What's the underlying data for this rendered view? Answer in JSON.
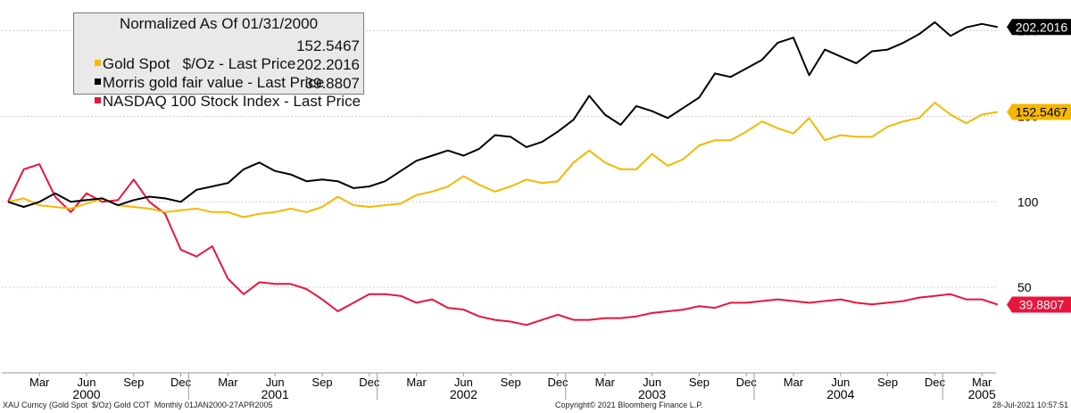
{
  "chart_data": {
    "type": "line",
    "title": "Normalized As Of 01/31/2000",
    "y_ticks": [
      {
        "value": 50,
        "label": "50"
      },
      {
        "value": 100,
        "label": "100"
      },
      {
        "value": 150,
        "label": "150"
      },
      {
        "value": 200,
        "label": "200"
      }
    ],
    "ylim": [
      0,
      218
    ],
    "x_start": "Jan 2000",
    "x_end": "Apr 2005",
    "month_ticks": [
      {
        "i": 2,
        "label": "Mar"
      },
      {
        "i": 5,
        "label": "Jun"
      },
      {
        "i": 8,
        "label": "Sep"
      },
      {
        "i": 11,
        "label": "Dec"
      },
      {
        "i": 14,
        "label": "Mar"
      },
      {
        "i": 17,
        "label": "Jun"
      },
      {
        "i": 20,
        "label": "Sep"
      },
      {
        "i": 23,
        "label": "Dec"
      },
      {
        "i": 26,
        "label": "Mar"
      },
      {
        "i": 29,
        "label": "Jun"
      },
      {
        "i": 32,
        "label": "Sep"
      },
      {
        "i": 35,
        "label": "Dec"
      },
      {
        "i": 38,
        "label": "Mar"
      },
      {
        "i": 41,
        "label": "Jun"
      },
      {
        "i": 44,
        "label": "Sep"
      },
      {
        "i": 47,
        "label": "Dec"
      },
      {
        "i": 50,
        "label": "Mar"
      },
      {
        "i": 53,
        "label": "Jun"
      },
      {
        "i": 56,
        "label": "Sep"
      },
      {
        "i": 59,
        "label": "Dec"
      },
      {
        "i": 62,
        "label": "Mar"
      }
    ],
    "year_labels": [
      {
        "i": 5,
        "label": "2000"
      },
      {
        "i": 17,
        "label": "2001"
      },
      {
        "i": 29,
        "label": "2002"
      },
      {
        "i": 41,
        "label": "2003"
      },
      {
        "i": 53,
        "label": "2004"
      },
      {
        "i": 62,
        "label": "2005"
      }
    ],
    "year_boundaries": [
      11.5,
      23.5,
      35.5,
      47.5,
      59.5
    ],
    "series": [
      {
        "name": "Gold Spot   $/Oz - Last Price",
        "last": "152.5467",
        "color": "#f5b800",
        "text_color": "#000000",
        "values": [
          100,
          102,
          98,
          97,
          96,
          99,
          102,
          98,
          97,
          96,
          94,
          95,
          96,
          94,
          94,
          91,
          93,
          94,
          96,
          94,
          97,
          103,
          98,
          97,
          98,
          99,
          104,
          106,
          109,
          115,
          110,
          106,
          109,
          113,
          111,
          112,
          123,
          130,
          123,
          119,
          119,
          128,
          121,
          125,
          133,
          136,
          136,
          141,
          147,
          143,
          140,
          149,
          136,
          139,
          138,
          138,
          144,
          147,
          149,
          158,
          151,
          146,
          151,
          152.5467
        ]
      },
      {
        "name": "Morris gold fair value - Last Price",
        "last": "202.2016",
        "color": "#000000",
        "text_color": "#ffffff",
        "values": [
          100,
          97,
          100,
          105,
          100,
          101,
          102,
          98,
          101,
          103,
          102,
          100,
          107,
          109,
          111,
          119,
          123,
          118,
          116,
          112,
          113,
          112,
          108,
          109,
          112,
          118,
          124,
          127,
          130,
          127,
          131,
          139,
          138,
          132,
          135,
          141,
          148,
          162,
          151,
          145,
          156,
          153,
          149,
          155,
          161,
          175,
          173,
          178,
          183,
          193,
          196,
          174,
          189,
          185,
          181,
          188,
          189,
          193,
          198,
          205,
          197,
          202,
          204,
          202.2016
        ]
      },
      {
        "name": "NASDAQ 100 Stock Index - Last Price",
        "last": "39.8807",
        "color": "#e8153c",
        "text_color": "#ffffff",
        "values": [
          100,
          119,
          122,
          103,
          94,
          105,
          100,
          101,
          113,
          100,
          93,
          72,
          68,
          74,
          55,
          46,
          53,
          52,
          52,
          49,
          43,
          36,
          41,
          46,
          46,
          45,
          41,
          43,
          38,
          37,
          33,
          31,
          30,
          28,
          31,
          34,
          31,
          31,
          32,
          32,
          33,
          35,
          36,
          37,
          39,
          38,
          41,
          41,
          42,
          43,
          42,
          41,
          42,
          43,
          41,
          40,
          41,
          42,
          44,
          45,
          46,
          43,
          43,
          39.8807
        ]
      }
    ]
  },
  "footer": {
    "left": "XAU Curncy (Gold Spot  $/Oz) Gold COT  Monthly 01JAN2000-27APR2005",
    "center": "Copyright© 2021 Bloomberg Finance L.P.",
    "right": "28-Jul-2021 10:57:51"
  }
}
